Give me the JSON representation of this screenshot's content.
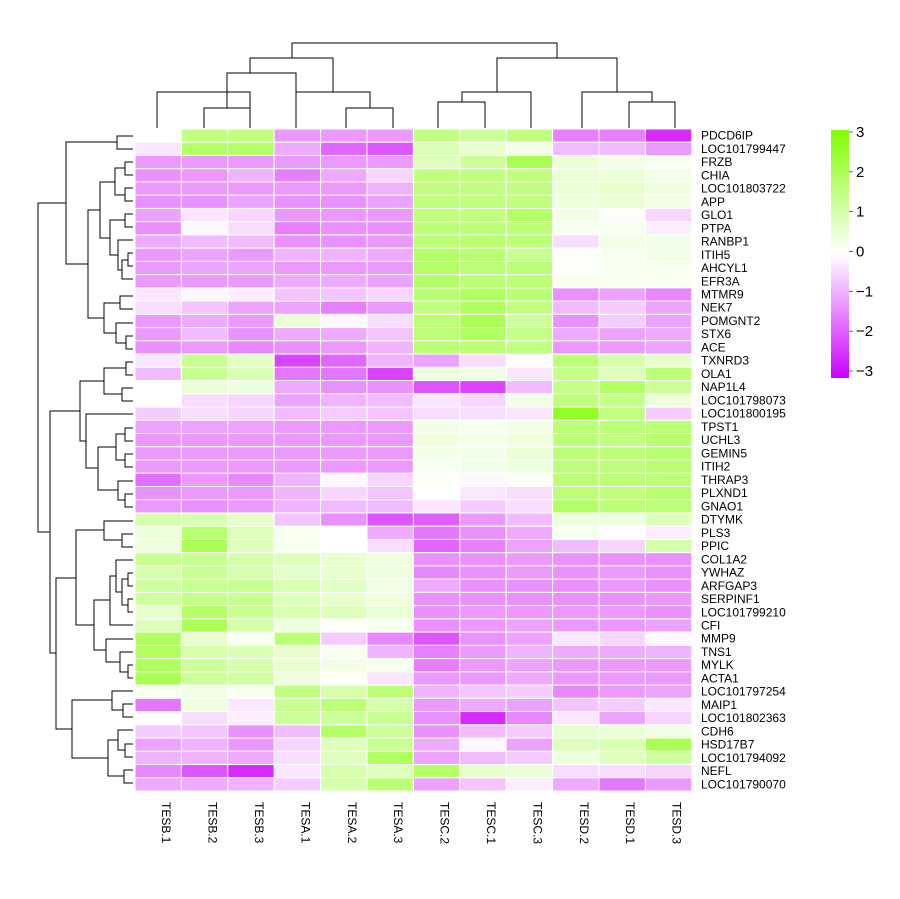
{
  "chart_data": {
    "type": "heatmap",
    "title": "",
    "columns": [
      "TESB.1",
      "TESB.2",
      "TESB.3",
      "TESA.1",
      "TESA.2",
      "TESA.3",
      "TESC.2",
      "TESC.1",
      "TESC.3",
      "TESD.2",
      "TESD.1",
      "TESD.3"
    ],
    "rows": [
      "PDCD6IP",
      "LOC101799447",
      "FRZB",
      "CHIA",
      "LOC101803722",
      "APP",
      "GLO1",
      "PTPA",
      "RANBP1",
      "ITIH5",
      "AHCYL1",
      "EFR3A",
      "MTMR9",
      "NEK7",
      "POMGNT2",
      "STX6",
      "ACE",
      "TXNRD3",
      "OLA1",
      "NAP1L4",
      "LOC101798073",
      "LOC101800195",
      "TPST1",
      "UCHL3",
      "GEMIN5",
      "ITIH2",
      "THRAP3",
      "PLXND1",
      "GNAO1",
      "DTYMK",
      "PLS3",
      "PPIC",
      "COL1A2",
      "YWHAZ",
      "ARFGAP3",
      "SERPINF1",
      "LOC101799210",
      "CFI",
      "MMP9",
      "TNS1",
      "MYLK",
      "ACTA1",
      "LOC101797254",
      "MAIP1",
      "LOC101802363",
      "CDH6",
      "HSD17B7",
      "LOC101794092",
      "NEFL",
      "LOC101790070"
    ],
    "values": [
      [
        0,
        1.5,
        1.5,
        -1.2,
        -1.2,
        -1.2,
        1.5,
        1.2,
        1.5,
        -1.5,
        -1.5,
        -2.5
      ],
      [
        -0.3,
        1.8,
        1.8,
        -1.0,
        -1.8,
        -2.0,
        0.9,
        0.6,
        0.3,
        -0.8,
        -0.8,
        -1.2
      ],
      [
        -1.2,
        -1.2,
        -1.2,
        -1.2,
        -1.2,
        -1.2,
        0.8,
        1.2,
        2.0,
        0.5,
        0.3,
        0.2
      ],
      [
        -1.3,
        -1.2,
        -0.9,
        -1.5,
        -1.0,
        -0.5,
        1.5,
        1.5,
        1.5,
        0.5,
        0.5,
        0.3
      ],
      [
        -1.2,
        -1.2,
        -1.2,
        -1.2,
        -1.2,
        -0.9,
        1.5,
        1.5,
        1.5,
        0.5,
        0.6,
        0.4
      ],
      [
        -1.3,
        -1.3,
        -1.1,
        -1.3,
        -1.3,
        -1.1,
        1.5,
        1.5,
        1.5,
        0.4,
        0.5,
        0.3
      ],
      [
        -1.1,
        -0.3,
        -0.5,
        -1.2,
        -1.2,
        -1.2,
        1.5,
        1.5,
        1.8,
        0.3,
        0.1,
        -0.5
      ],
      [
        -1.3,
        -0.1,
        -0.4,
        -1.5,
        -1.3,
        -1.3,
        1.6,
        1.6,
        1.6,
        0.2,
        0.2,
        -0.2
      ],
      [
        -1.0,
        -0.8,
        -0.8,
        -1.3,
        -1.3,
        -1.2,
        1.6,
        1.7,
        1.6,
        -0.4,
        0.3,
        0.3
      ],
      [
        -1.2,
        -1.1,
        -1.2,
        -0.9,
        -0.9,
        -1.0,
        1.8,
        1.7,
        1.3,
        0.1,
        0.2,
        0.3
      ],
      [
        -1.2,
        -1.1,
        -1.1,
        -1.2,
        -1.2,
        -1.2,
        1.8,
        1.6,
        1.6,
        0.1,
        0.2,
        0.2
      ],
      [
        -1.2,
        -1.2,
        -1.2,
        -1.0,
        -1.0,
        -1.1,
        1.8,
        1.6,
        1.6,
        0.2,
        0.2,
        0.2
      ],
      [
        -0.3,
        -0.1,
        -0.2,
        -0.7,
        -0.7,
        -0.5,
        1.6,
        1.9,
        1.6,
        -1.3,
        -1.1,
        -1.4
      ],
      [
        -0.4,
        -0.7,
        -1.1,
        -1.1,
        -1.5,
        -1.2,
        1.5,
        1.9,
        1.5,
        -0.8,
        -0.6,
        -1.1
      ],
      [
        -1.2,
        -1.0,
        -1.2,
        0.5,
        -0.1,
        -0.4,
        1.6,
        2.0,
        1.2,
        -1.3,
        -0.6,
        -1.1
      ],
      [
        -1.2,
        -0.8,
        -1.3,
        -1.0,
        -1.0,
        -0.7,
        1.6,
        1.9,
        1.4,
        -1.0,
        -1.1,
        -1.0
      ],
      [
        -1.3,
        -1.2,
        -1.4,
        -1.3,
        -1.2,
        -0.9,
        1.6,
        1.6,
        1.5,
        -1.2,
        -1.2,
        -1.1
      ],
      [
        -0.3,
        1.3,
        0.7,
        -2.2,
        -1.8,
        -0.9,
        -1.1,
        -0.4,
        0,
        1.6,
        1.0,
        0.6
      ],
      [
        -0.8,
        1.3,
        0.9,
        -1.6,
        -1.6,
        -2.2,
        0.4,
        0.3,
        -0.3,
        1.4,
        0.8,
        1.6
      ],
      [
        0,
        0.5,
        0.4,
        -1.0,
        -1.3,
        -1.3,
        -2.0,
        -2.2,
        -0.8,
        1.4,
        1.8,
        1.2
      ],
      [
        0,
        -0.4,
        -0.5,
        -1.1,
        -0.9,
        -0.8,
        -0.3,
        -0.5,
        0.3,
        1.5,
        1.4,
        0.4
      ],
      [
        -0.6,
        -0.4,
        -0.5,
        -0.8,
        -0.6,
        -0.7,
        -0.4,
        -0.4,
        -0.3,
        2.6,
        1.5,
        -0.6
      ],
      [
        -1.1,
        -1.1,
        -1.1,
        -1.2,
        -1.2,
        -1.2,
        0.3,
        0.2,
        0.3,
        1.6,
        1.6,
        1.6
      ],
      [
        -1.2,
        -1.2,
        -1.2,
        -1.2,
        -1.2,
        -1.2,
        0.4,
        0.3,
        0.4,
        1.6,
        1.5,
        1.7
      ],
      [
        -1.2,
        -1.2,
        -1.2,
        -1.2,
        -1.2,
        -1.2,
        0.3,
        0.3,
        0.5,
        1.6,
        1.6,
        1.7
      ],
      [
        -1.2,
        -1.2,
        -1.2,
        -1.2,
        -1.2,
        -1.2,
        0.2,
        0.3,
        0.4,
        1.6,
        1.6,
        1.7
      ],
      [
        -1.7,
        -1.2,
        -1.4,
        -0.9,
        -0.1,
        -0.5,
        0.1,
        -0.1,
        0.1,
        1.6,
        1.6,
        1.6
      ],
      [
        -1.3,
        -1.2,
        -1.2,
        -0.9,
        -0.5,
        -0.7,
        0,
        -0.3,
        -0.4,
        1.6,
        1.5,
        1.7
      ],
      [
        -1.2,
        -1.3,
        -1.2,
        -0.9,
        -0.8,
        -0.8,
        -0.3,
        -0.6,
        -0.4,
        1.8,
        1.6,
        1.6
      ],
      [
        1.0,
        0.9,
        0.6,
        -0.7,
        -1.3,
        -2.0,
        -1.9,
        -1.2,
        -0.8,
        0.4,
        0.4,
        0.8
      ],
      [
        0.4,
        1.7,
        0.8,
        0.2,
        0,
        -1.0,
        -1.6,
        -1.3,
        -1.0,
        0.2,
        0,
        -0.2
      ],
      [
        0.4,
        2.0,
        0.8,
        0.2,
        0,
        -0.4,
        -1.8,
        -1.5,
        -1.1,
        -0.8,
        -0.5,
        1.0
      ],
      [
        1.3,
        1.3,
        1.0,
        0.8,
        0.6,
        0.4,
        -1.3,
        -1.3,
        -1.2,
        -1.3,
        -1.3,
        -1.3
      ],
      [
        1.0,
        1.3,
        1.0,
        0.7,
        0.6,
        0.4,
        -1.4,
        -1.3,
        -1.2,
        -1.3,
        -1.2,
        -1.3
      ],
      [
        1.1,
        1.3,
        1.3,
        0.9,
        0.7,
        0.3,
        -1.0,
        -1.3,
        -1.3,
        -1.3,
        -1.2,
        -1.3
      ],
      [
        1.1,
        1.4,
        1.3,
        0.8,
        0.6,
        0.4,
        -1.3,
        -1.3,
        -1.3,
        -1.3,
        -1.3,
        -1.2
      ],
      [
        0.6,
        1.8,
        1.3,
        0.9,
        0.8,
        0.5,
        -1.3,
        -1.2,
        -1.2,
        -1.2,
        -1.2,
        -1.3
      ],
      [
        0.8,
        2.0,
        1.0,
        0.4,
        0.1,
        0.2,
        -1.3,
        -1.2,
        -1.1,
        -1.2,
        -1.2,
        -1.1
      ],
      [
        1.9,
        0.6,
        0.2,
        1.6,
        -0.6,
        -1.4,
        -2.0,
        -1.3,
        -1.1,
        -0.3,
        -0.5,
        -0.1
      ],
      [
        1.9,
        1.0,
        0.9,
        0.6,
        0.2,
        -0.9,
        -1.5,
        -1.2,
        -0.9,
        -1.0,
        -1.0,
        -0.9
      ],
      [
        1.9,
        1.2,
        1.0,
        0.6,
        0.3,
        0.2,
        -1.5,
        -1.2,
        -1.1,
        -1.2,
        -1.2,
        -1.2
      ],
      [
        2.0,
        1.2,
        1.1,
        0.4,
        0.1,
        -0.3,
        -1.2,
        -1.2,
        -1.0,
        -1.2,
        -1.2,
        -1.2
      ],
      [
        0.2,
        0.3,
        0.2,
        1.5,
        1.0,
        1.6,
        -0.9,
        -0.7,
        -0.6,
        -1.4,
        -1.2,
        -1.1
      ],
      [
        -1.6,
        0.4,
        -0.3,
        1.3,
        1.6,
        1.0,
        -1.2,
        -1.0,
        -1.1,
        -0.7,
        -0.6,
        -0.3
      ],
      [
        0,
        -0.4,
        -0.2,
        1.2,
        1.2,
        1.3,
        -1.3,
        -2.5,
        -1.4,
        -0.3,
        -1.1,
        -0.5
      ],
      [
        -0.6,
        -0.7,
        -1.3,
        -0.8,
        1.8,
        1.2,
        -1.3,
        -0.8,
        -0.6,
        0.6,
        0.5,
        0.3
      ],
      [
        -1.1,
        -0.9,
        -1.2,
        -0.5,
        0.8,
        1.3,
        -1.0,
        -0.1,
        -1.1,
        0.8,
        0.9,
        2.0
      ],
      [
        -0.9,
        -0.9,
        -1.0,
        -0.4,
        0.8,
        1.9,
        -1.1,
        -0.8,
        -0.6,
        0.4,
        0.8,
        1.1
      ],
      [
        -1.4,
        -2.0,
        -2.5,
        -0.3,
        1.0,
        0.8,
        1.8,
        0.6,
        0.5,
        -0.4,
        -0.4,
        -0.5
      ],
      [
        -1.0,
        -1.0,
        -0.9,
        -0.6,
        1.0,
        1.6,
        -1.1,
        -0.7,
        -0.2,
        -1.0,
        -1.6,
        -1.2
      ]
    ],
    "color_scale": {
      "min": -3,
      "max": 3,
      "colors": {
        "low": "#cc00ff",
        "mid": "#ffffff",
        "high": "#80ff00"
      },
      "ticks": [
        "3",
        "2",
        "1",
        "0",
        "−1",
        "−2",
        "−3"
      ],
      "tick_values": [
        3,
        2,
        1,
        0,
        -1,
        -2,
        -3
      ]
    },
    "legend_position": "top-right",
    "column_dendrogram": true,
    "row_dendrogram": true
  }
}
